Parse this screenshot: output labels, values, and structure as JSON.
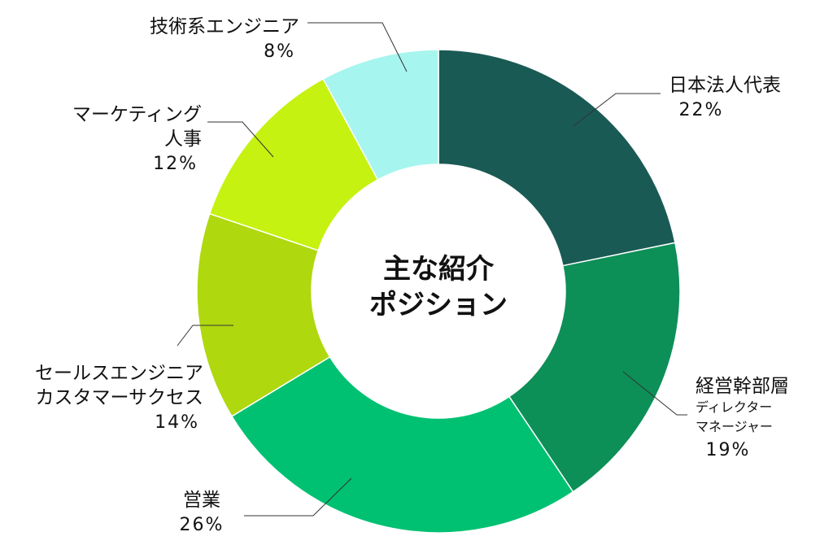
{
  "chart_data": {
    "type": "pie",
    "center_title": [
      "主な紹介",
      "ポジション"
    ],
    "slices": [
      {
        "label": [
          "日本法人代表"
        ],
        "sub": [],
        "value": 22,
        "pct_label": "22%",
        "color": "#1a5a55"
      },
      {
        "label": [
          "経営幹部層"
        ],
        "sub": [
          "ディレクター",
          "マネージャー"
        ],
        "value": 19,
        "pct_label": "19%",
        "color": "#0d8f58"
      },
      {
        "label": [
          "営業"
        ],
        "sub": [],
        "value": 26,
        "pct_label": "26%",
        "color": "#00c172"
      },
      {
        "label": [
          "セールスエンジニア",
          "カスタマーサクセス"
        ],
        "sub": [],
        "value": 14,
        "pct_label": "14%",
        "color": "#afd80f"
      },
      {
        "label": [
          "マーケティング",
          "人事"
        ],
        "sub": [],
        "value": 12,
        "pct_label": "12%",
        "color": "#c5f211"
      },
      {
        "label": [
          "技術系エンジニア"
        ],
        "sub": [],
        "value": 8,
        "pct_label": "8%",
        "color": "#a6f5ee"
      }
    ]
  }
}
